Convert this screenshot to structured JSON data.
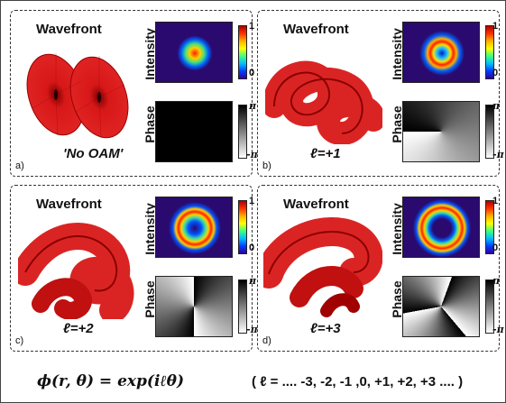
{
  "panels": [
    {
      "id": "a",
      "tag": "a)",
      "wavefront_title": "Wavefront",
      "intensity_label": "Intensity",
      "phase_label": "Phase",
      "int_top": "1",
      "int_bottom": "0",
      "phase_top": "π",
      "phase_bottom": "-π",
      "caption": "'No OAM'",
      "oam": 0
    },
    {
      "id": "b",
      "tag": "b)",
      "wavefront_title": "Wavefront",
      "intensity_label": "Intensity",
      "phase_label": "Phase",
      "int_top": "1",
      "int_bottom": "0",
      "phase_top": "π",
      "phase_bottom": "-π",
      "caption": "ℓ=+1",
      "oam": 1
    },
    {
      "id": "c",
      "tag": "c)",
      "wavefront_title": "Wavefront",
      "intensity_label": "Intensity",
      "phase_label": "Phase",
      "int_top": "1",
      "int_bottom": "0",
      "phase_top": "π",
      "phase_bottom": "-π",
      "caption": "ℓ=+2",
      "oam": 2
    },
    {
      "id": "d",
      "tag": "d)",
      "wavefront_title": "Wavefront",
      "intensity_label": "Intensity",
      "phase_label": "Phase",
      "int_top": "1",
      "int_bottom": "0",
      "phase_top": "π",
      "phase_bottom": "-π",
      "caption": "ℓ=+3",
      "oam": 3
    }
  ],
  "formula": {
    "equation": "ϕ(r, θ) = exp(iℓθ)",
    "l_values": "( ℓ = .... -3, -2, -1 ,0, +1, +2, +3 .... )"
  },
  "colors": {
    "wavefront_red": "#d81818",
    "wavefront_dark": "#8a0000",
    "intensity_bg": "#2a0a6e"
  }
}
